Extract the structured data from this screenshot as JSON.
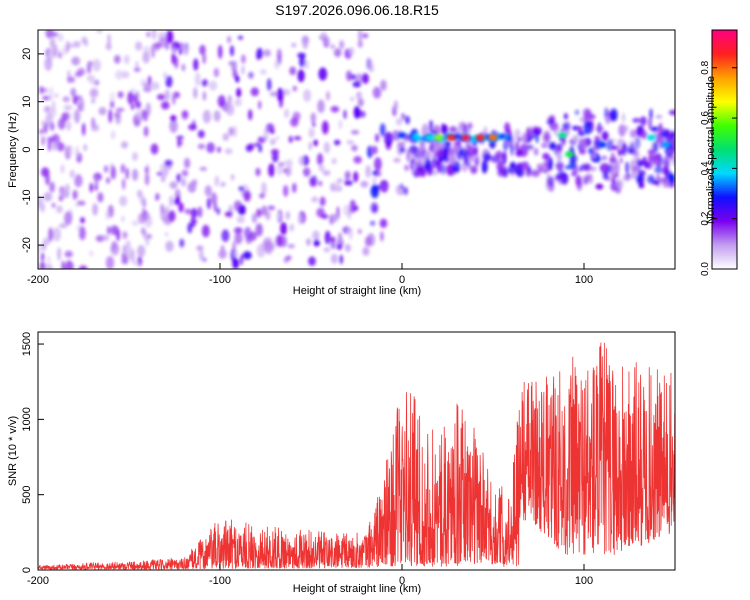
{
  "figure": {
    "title": "S197.2026.096.06.18.R15"
  },
  "chart_data": [
    {
      "type": "heatmap",
      "xlabel": "Height of straight line (km)",
      "ylabel": "Frequency (Hz)",
      "xlim": [
        -200,
        150
      ],
      "ylim": [
        -25,
        25
      ],
      "xticks": [
        -200,
        -100,
        0,
        100
      ],
      "xtick_labels": [
        "-200",
        "-100",
        "0",
        "100"
      ],
      "yticks": [
        -20,
        -10,
        0,
        10,
        20
      ],
      "ytick_labels": [
        "-20",
        "-10",
        "0",
        "10",
        "20"
      ],
      "colorbar": {
        "label": "Normalized spectral amplitude",
        "range": [
          0.0,
          0.95
        ],
        "ticks": [
          0.0,
          0.2,
          0.4,
          0.6,
          0.8
        ],
        "tick_labels": [
          "0.0",
          "0.2",
          "0.4",
          "0.6",
          "0.8"
        ],
        "colors": [
          "#ffffff",
          "#c29ef0",
          "#7a00f0",
          "#1010ff",
          "#00d8ff",
          "#00e070",
          "#40ff00",
          "#ffff00",
          "#ffa000",
          "#ff2020",
          "#ff0080"
        ]
      },
      "features": [
        {
          "x": 15,
          "y": 2.5,
          "amplitude": 0.4
        },
        {
          "x": 20,
          "y": 2.5,
          "amplitude": 0.6
        },
        {
          "x": 27,
          "y": 2.5,
          "amplitude": 0.85
        },
        {
          "x": 35,
          "y": 2.5,
          "amplitude": 0.9
        },
        {
          "x": 43,
          "y": 2.5,
          "amplitude": 0.85
        },
        {
          "x": 50,
          "y": 2.5,
          "amplitude": 0.8
        },
        {
          "x": 88,
          "y": 3.0,
          "amplitude": 0.45
        },
        {
          "x": 92,
          "y": -1.0,
          "amplitude": 0.5
        },
        {
          "x": 137,
          "y": 2.5,
          "amplitude": 0.4
        },
        {
          "x": 145,
          "y": 1.0,
          "amplitude": 0.35
        },
        {
          "x": 0,
          "y": 3.0,
          "amplitude": 0.3
        },
        {
          "x": 110,
          "y": 1.0,
          "amplitude": 0.3
        }
      ]
    },
    {
      "type": "line",
      "xlabel": "Height of straight line (km)",
      "ylabel": "SNR (10 * v/v)",
      "xlim": [
        -200,
        150
      ],
      "ylim": [
        0,
        1580
      ],
      "xticks": [
        -200,
        -100,
        0,
        100
      ],
      "xtick_labels": [
        "-200",
        "-100",
        "0",
        "100"
      ],
      "yticks": [
        0,
        500,
        1000,
        1500
      ],
      "ytick_labels": [
        "0",
        "500",
        "1000",
        "1500"
      ],
      "series": [
        {
          "name": "SNR",
          "color": "#ee3333",
          "envelope_x": [
            -200,
            -150,
            -120,
            -100,
            -80,
            -60,
            -40,
            -20,
            -10,
            0,
            10,
            20,
            30,
            40,
            50,
            60,
            65,
            70,
            80,
            90,
            100,
            110,
            120,
            130,
            140,
            150
          ],
          "envelope_low": [
            5,
            5,
            5,
            8,
            10,
            10,
            10,
            15,
            20,
            30,
            40,
            40,
            40,
            40,
            40,
            40,
            300,
            350,
            200,
            100,
            100,
            100,
            100,
            150,
            200,
            250
          ],
          "envelope_high": [
            30,
            60,
            80,
            350,
            300,
            280,
            250,
            250,
            650,
            1230,
            1150,
            880,
            1120,
            1000,
            550,
            600,
            1350,
            1300,
            1300,
            1420,
            1450,
            1580,
            1400,
            1400,
            1350,
            1300
          ]
        }
      ]
    }
  ]
}
